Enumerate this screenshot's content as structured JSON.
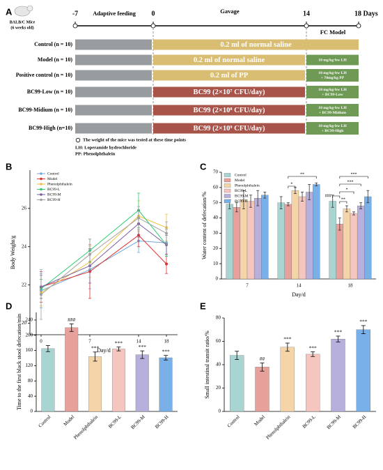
{
  "panel_a": {
    "label": "A",
    "mouse": [
      "BALB/C Mice",
      "(6 weeks old)"
    ],
    "timeline": {
      "ticks": [
        "-7",
        "0",
        "14",
        "18 Days"
      ],
      "phases": [
        "Adaptive feeding",
        "Gavage"
      ],
      "model_phase": "FC Model"
    },
    "groups": [
      {
        "label": "Control (n = 10)",
        "treatment": "0.2 ml of normal saline",
        "color": "#d8bd72"
      },
      {
        "label": "Model (n = 10)",
        "treatment": "0.2 ml of normal saline",
        "color": "#d8bd72",
        "model": [
          "10 mg/kg·bw LH"
        ]
      },
      {
        "label": "Positive control (n = 10)",
        "treatment": "0.2 ml of  PP",
        "color": "#d8bd72",
        "model": [
          "10 mg/kg·bw LH",
          "+ 70mg/kg PP"
        ]
      },
      {
        "label": "BC99-Low (n = 10)",
        "treatment": "BC99 (2×10⁷ CFU/day)",
        "color": "#a9544a",
        "model": [
          "10 mg/kg·bw LH",
          "+ BC99-Low"
        ]
      },
      {
        "label": "BC99-Midium (n = 10)",
        "treatment": "BC99 (2×10⁸ CFU/day)",
        "color": "#a9544a",
        "model": [
          "10 mg/kg·bw LH",
          "+ BC99-Midium"
        ]
      },
      {
        "label": "BC99-High (n=10)",
        "treatment": "BC99 (2×10⁹ CFU/day)",
        "color": "#a9544a",
        "model": [
          "10 mg/kg·bw LH",
          "+ BC99-High"
        ]
      }
    ],
    "legend": "The weight of the mice was tested at these time points",
    "notes": [
      "LH: Loperamide hydrochloride",
      "PP: Phenolphthalein"
    ]
  },
  "chart_data": [
    {
      "type": "line",
      "label": "B",
      "y_label": "Body Weight/g",
      "x_label": "Day/d",
      "x": [
        0,
        7,
        14,
        18
      ],
      "xlim": [
        -1.6,
        19.6
      ],
      "xticks": [
        0,
        7,
        14,
        18
      ],
      "ylim": [
        19.4,
        28
      ],
      "yticks": [
        20,
        22,
        24,
        26
      ],
      "legend": "upper left",
      "series": [
        {
          "name": "Control",
          "color": "#6fa8dc",
          "values": [
            21.7,
            22.8,
            24.3,
            24.2
          ],
          "errors": [
            0.9,
            1.0,
            0.6,
            0.7
          ]
        },
        {
          "name": "Model",
          "color": "#e03030",
          "values": [
            21.9,
            22.7,
            24.6,
            23.1
          ],
          "errors": [
            0.8,
            1.4,
            0.6,
            0.5
          ]
        },
        {
          "name": "Phenolphthalein",
          "color": "#f0c040",
          "values": [
            21.6,
            23.2,
            25.6,
            25.0
          ],
          "errors": [
            0.7,
            0.8,
            0.8,
            0.7
          ]
        },
        {
          "name": "BC99-L",
          "color": "#2ecc71",
          "values": [
            21.8,
            23.8,
            25.9,
            24.1
          ],
          "errors": [
            0.5,
            0.6,
            0.9,
            0.6
          ]
        },
        {
          "name": "BC99-M",
          "color": "#7a5aa0",
          "values": [
            21.9,
            23.0,
            25.2,
            24.1
          ],
          "errors": [
            0.6,
            0.9,
            0.7,
            0.5
          ]
        },
        {
          "name": "BC99-H",
          "color": "#a0a0a0",
          "values": [
            21.5,
            23.6,
            25.5,
            24.7
          ],
          "errors": [
            1.3,
            0.8,
            0.6,
            0.6
          ]
        }
      ]
    },
    {
      "type": "grouped_bar",
      "label": "C",
      "y_label": "Water content of defecation/%",
      "x_label": "Day/d",
      "categories": [
        "7",
        "14",
        "18"
      ],
      "ylim": [
        0,
        70
      ],
      "yticks": [
        0,
        10,
        20,
        30,
        40,
        50,
        60,
        70
      ],
      "legend": "upper left",
      "series": [
        {
          "name": "Control",
          "color": "#a8d5d1",
          "values": [
            49,
            50,
            51
          ],
          "errors": [
            3,
            4,
            4
          ]
        },
        {
          "name": "Model",
          "color": "#e8a09a",
          "values": [
            47,
            49,
            36
          ],
          "errors": [
            3,
            1,
            4
          ]
        },
        {
          "name": "Phenolphthalein",
          "color": "#f5d5a8",
          "values": [
            52,
            58,
            46
          ],
          "errors": [
            6,
            2,
            2
          ]
        },
        {
          "name": "BC99-L",
          "color": "#f5c5c0",
          "values": [
            51,
            54,
            43
          ],
          "errors": [
            4,
            3,
            1
          ]
        },
        {
          "name": "BC99-M",
          "color": "#b8b0dc",
          "values": [
            53,
            57,
            48
          ],
          "errors": [
            5,
            5,
            2
          ]
        },
        {
          "name": "BC99-H",
          "color": "#7ab0e8",
          "values": [
            55,
            62,
            54
          ],
          "errors": [
            2,
            1,
            4
          ]
        }
      ],
      "annotations": [
        "*",
        "**",
        "###",
        "**",
        "*",
        "***",
        "***"
      ]
    },
    {
      "type": "bar",
      "label": "D",
      "y_label": "Time to the first black stool defecation/min",
      "categories": [
        "Control",
        "Model",
        "Phenolphthalein",
        "BC99-L",
        "BC99-M",
        "BC99-H"
      ],
      "colors": [
        "#a8d5d1",
        "#e8a09a",
        "#f5d5a8",
        "#f5c5c0",
        "#b8b0dc",
        "#7ab0e8"
      ],
      "values": [
        165,
        220,
        144,
        164,
        149,
        141
      ],
      "errors": [
        8,
        10,
        12,
        5,
        10,
        6
      ],
      "annotations": [
        null,
        "###",
        "***",
        "***",
        "***",
        "***"
      ],
      "ylim": [
        0,
        260
      ],
      "yticks": [
        0,
        40,
        80,
        120,
        160,
        200,
        240
      ]
    },
    {
      "type": "bar",
      "label": "E",
      "y_label": "Small intestinal transit ratio/%",
      "categories": [
        "Control",
        "Model",
        "Phenolphthalein",
        "BC99-L",
        "BC99-M",
        "BC99-H"
      ],
      "colors": [
        "#a8d5d1",
        "#e8a09a",
        "#f5d5a8",
        "#f5c5c0",
        "#b8b0dc",
        "#7ab0e8"
      ],
      "values": [
        48,
        38,
        55,
        49,
        62,
        70
      ],
      "errors": [
        3.5,
        3.5,
        3.5,
        2,
        2.5,
        3.5
      ],
      "annotations": [
        null,
        "##",
        "***",
        "***",
        "***",
        "***"
      ],
      "ylim": [
        0,
        80
      ],
      "yticks": [
        0,
        20,
        40,
        60,
        80
      ]
    }
  ]
}
